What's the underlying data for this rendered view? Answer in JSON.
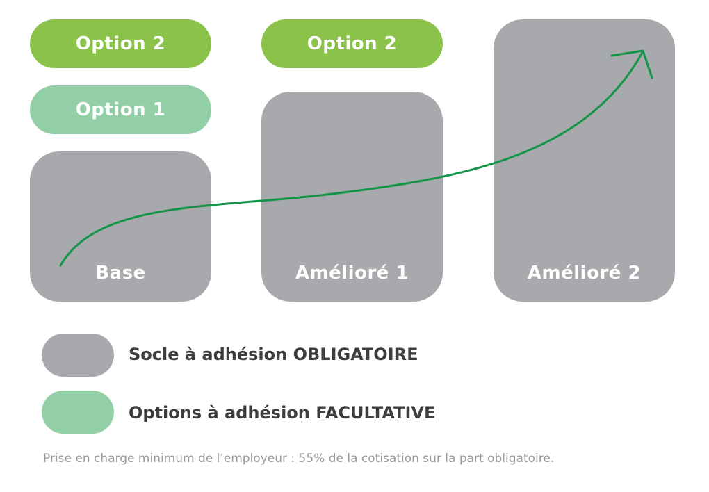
{
  "colors": {
    "option_2": "#8bc34a",
    "option_1": "#93cfa6",
    "socle": "#a7a9ac",
    "arrow": "#149447",
    "legend_text": "#3d3d3d",
    "footnote_text": "#9a9a9a"
  },
  "columns": [
    {
      "socle_label": "Base",
      "options": [
        "Option 2",
        "Option 1"
      ]
    },
    {
      "socle_label": "Amélioré 1",
      "options": [
        "Option 2"
      ]
    },
    {
      "socle_label": "Amélioré 2",
      "options": []
    }
  ],
  "legend": [
    {
      "label": "Socle à adhésion OBLIGATOIRE",
      "swatch_color": "#a7a9ac"
    },
    {
      "label": "Options à adhésion FACULTATIVE",
      "swatch_color": "#93cfa6"
    }
  ],
  "arrow_icon": "upward-trend-arrow",
  "footnote": "Prise en charge minimum de l’employeur : 55% de la cotisation sur la part obligatoire."
}
